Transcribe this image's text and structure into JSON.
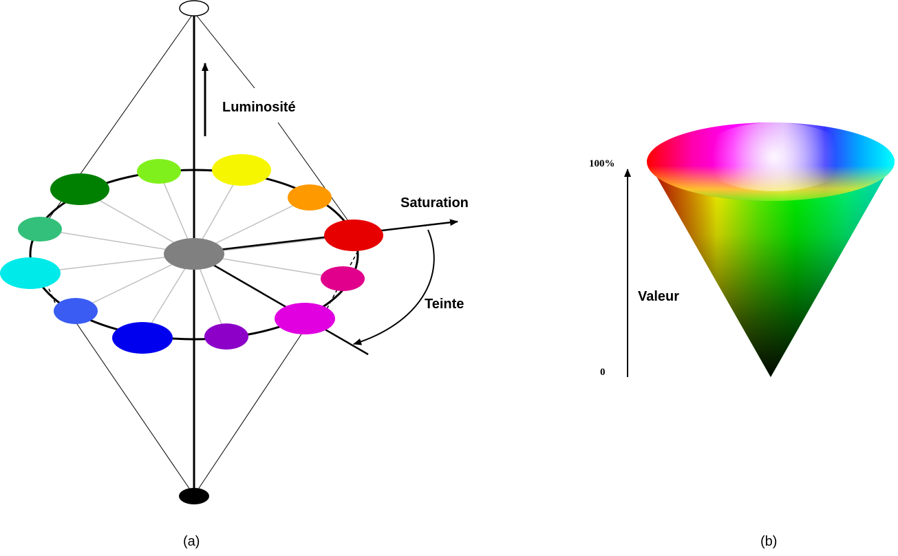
{
  "diagram_a": {
    "caption": "(a)",
    "labels": {
      "luminosity": "Luminosité",
      "saturation": "Saturation",
      "hue": "Teinte"
    },
    "center_color": "#808080",
    "top_color": "#ffffff",
    "bottom_color": "#000000",
    "hue_colors": [
      {
        "name": "red",
        "color": "#e60000"
      },
      {
        "name": "pink",
        "color": "#e0008c"
      },
      {
        "name": "magenta",
        "color": "#e000e0"
      },
      {
        "name": "purple",
        "color": "#8c00c8"
      },
      {
        "name": "blue",
        "color": "#0000ee"
      },
      {
        "name": "light-blue",
        "color": "#3a5cf2"
      },
      {
        "name": "cyan",
        "color": "#00eaea"
      },
      {
        "name": "sea-green",
        "color": "#33c07a"
      },
      {
        "name": "dark-green",
        "color": "#008000"
      },
      {
        "name": "lime",
        "color": "#80f01c"
      },
      {
        "name": "yellow",
        "color": "#f6f600"
      },
      {
        "name": "orange",
        "color": "#ff9900"
      }
    ]
  },
  "diagram_b": {
    "caption": "(b)",
    "axis_label": "Valeur",
    "tick_top": "100%",
    "tick_bottom": "0"
  }
}
